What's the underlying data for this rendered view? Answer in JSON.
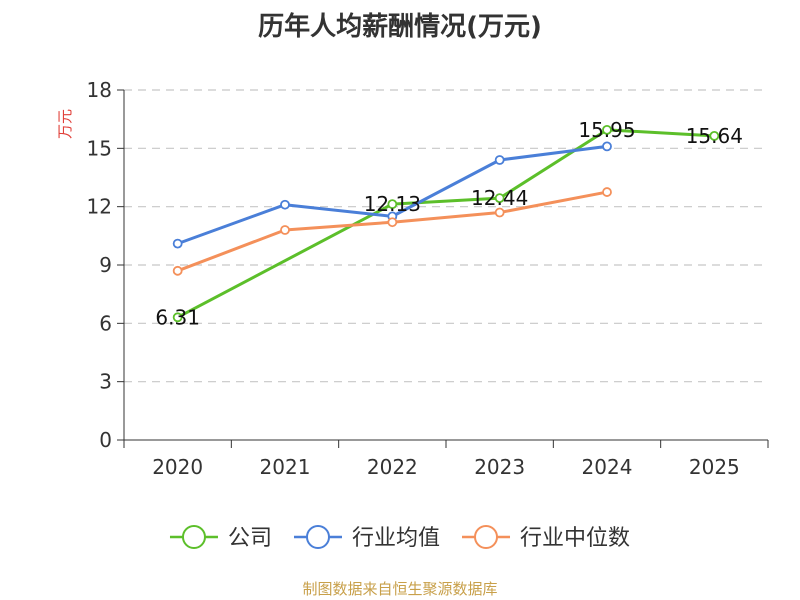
{
  "chart_data": {
    "type": "line",
    "title": "历年人均薪酬情况(万元)",
    "ylabel": "万元",
    "xlabel": "",
    "categories": [
      "2020",
      "2021",
      "2022",
      "2023",
      "2024",
      "2025"
    ],
    "ylim": [
      0,
      18
    ],
    "yticks": [
      0,
      3,
      6,
      9,
      12,
      15,
      18
    ],
    "grid": true,
    "legend_position": "bottom",
    "series": [
      {
        "name": "公司",
        "color": "#5cbf2a",
        "values": [
          6.31,
          null,
          12.13,
          12.44,
          15.95,
          15.64
        ],
        "labels": [
          "6.31",
          "",
          "12.13",
          "12.44",
          "15.95",
          "15.64"
        ]
      },
      {
        "name": "行业均值",
        "color": "#4a7fd8",
        "values": [
          10.1,
          12.1,
          11.5,
          14.4,
          15.1,
          null
        ]
      },
      {
        "name": "行业中位数",
        "color": "#f4905a",
        "values": [
          8.7,
          10.8,
          11.2,
          11.7,
          12.75,
          null
        ]
      }
    ]
  },
  "footer": {
    "source": "制图数据来自恒生聚源数据库"
  }
}
